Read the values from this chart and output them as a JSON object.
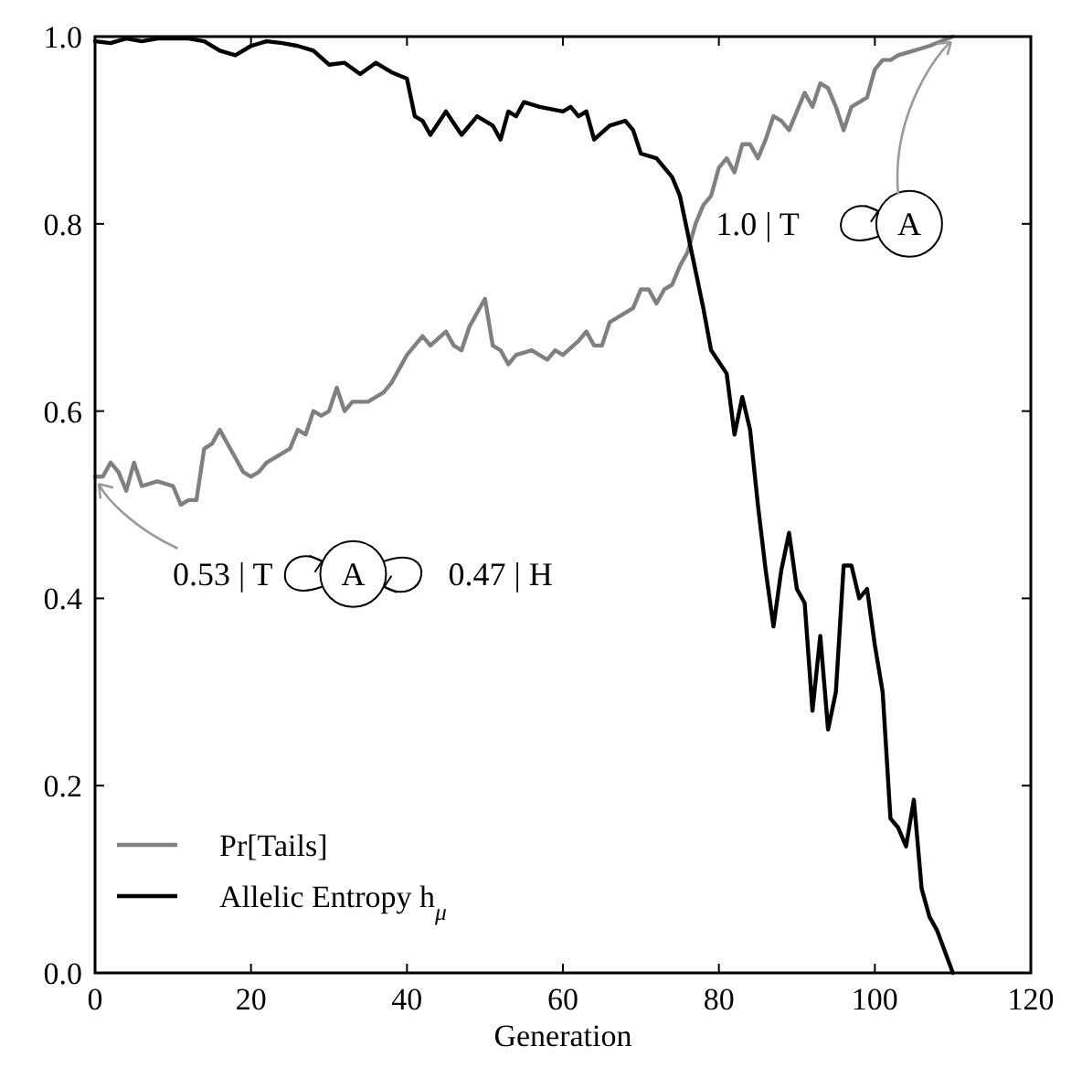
{
  "chart_data": {
    "type": "line",
    "xlabel": "Generation",
    "xlim": [
      0,
      120
    ],
    "ylim": [
      0,
      1.0
    ],
    "xticks": [
      0,
      20,
      40,
      60,
      80,
      100,
      120
    ],
    "yticks": [
      {
        "value": 0,
        "label": "0.0"
      },
      0.2,
      0.4,
      0.6,
      0.8,
      {
        "value": 1,
        "label": "1.0"
      }
    ],
    "grid": false,
    "legend": "bottom left",
    "line_style": "solid",
    "marker": "none",
    "series": [
      {
        "name": "Pr[Tails]",
        "color": "#808080",
        "x": [
          0,
          1,
          2,
          3,
          4,
          5,
          6,
          8,
          10,
          11,
          12,
          13,
          14,
          15,
          16,
          18,
          19,
          20,
          21,
          22,
          23,
          25,
          26,
          27,
          28,
          29,
          30,
          31,
          32,
          33,
          35,
          37,
          38,
          40,
          42,
          43,
          45,
          46,
          47,
          48,
          50,
          51,
          52,
          53,
          54,
          56,
          58,
          59,
          60,
          62,
          63,
          64,
          65,
          66,
          68,
          69,
          70,
          71,
          72,
          73,
          74,
          75,
          76,
          77,
          78,
          79,
          80,
          81,
          82,
          83,
          84,
          85,
          86,
          87,
          88,
          89,
          90,
          91,
          92,
          93,
          94,
          95,
          96,
          97,
          99,
          100,
          101,
          102,
          103,
          105,
          107,
          110
        ],
        "values": [
          0.53,
          0.53,
          0.545,
          0.535,
          0.515,
          0.545,
          0.52,
          0.525,
          0.52,
          0.5,
          0.505,
          0.505,
          0.56,
          0.565,
          0.58,
          0.55,
          0.535,
          0.53,
          0.535,
          0.545,
          0.55,
          0.56,
          0.58,
          0.575,
          0.6,
          0.595,
          0.6,
          0.625,
          0.6,
          0.61,
          0.61,
          0.62,
          0.63,
          0.66,
          0.68,
          0.67,
          0.685,
          0.67,
          0.665,
          0.69,
          0.72,
          0.67,
          0.665,
          0.65,
          0.66,
          0.665,
          0.655,
          0.665,
          0.66,
          0.675,
          0.685,
          0.67,
          0.67,
          0.695,
          0.705,
          0.71,
          0.73,
          0.73,
          0.715,
          0.73,
          0.735,
          0.755,
          0.77,
          0.8,
          0.82,
          0.83,
          0.86,
          0.87,
          0.855,
          0.885,
          0.885,
          0.87,
          0.89,
          0.915,
          0.91,
          0.9,
          0.92,
          0.94,
          0.925,
          0.95,
          0.945,
          0.925,
          0.9,
          0.925,
          0.935,
          0.965,
          0.975,
          0.975,
          0.98,
          0.985,
          0.99,
          1.0
        ]
      },
      {
        "name": "Allelic Entropy h$_{μ}$",
        "color": "#000000",
        "x": [
          0,
          2,
          4,
          6,
          8,
          12,
          14,
          16,
          18,
          20,
          22,
          24,
          26,
          28,
          30,
          32,
          34,
          36,
          38,
          40,
          41,
          42,
          43,
          45,
          47,
          49,
          51,
          52,
          53,
          54,
          55,
          57,
          60,
          61,
          62,
          63,
          64,
          66,
          68,
          69,
          70,
          72,
          74,
          75,
          76,
          77,
          78,
          79,
          81,
          82,
          83,
          84,
          85,
          86,
          87,
          88,
          89,
          90,
          91,
          92,
          93,
          94,
          95,
          96,
          97,
          98,
          99,
          100,
          101,
          102,
          103,
          104,
          105,
          106,
          107,
          108,
          110
        ],
        "values": [
          0.995,
          0.993,
          0.998,
          0.995,
          0.998,
          0.998,
          0.995,
          0.985,
          0.98,
          0.99,
          0.995,
          0.993,
          0.99,
          0.985,
          0.97,
          0.972,
          0.96,
          0.972,
          0.962,
          0.955,
          0.915,
          0.91,
          0.895,
          0.92,
          0.895,
          0.915,
          0.905,
          0.89,
          0.92,
          0.915,
          0.93,
          0.925,
          0.92,
          0.925,
          0.915,
          0.92,
          0.89,
          0.905,
          0.91,
          0.9,
          0.875,
          0.87,
          0.85,
          0.83,
          0.79,
          0.75,
          0.71,
          0.665,
          0.64,
          0.575,
          0.615,
          0.58,
          0.5,
          0.43,
          0.37,
          0.43,
          0.47,
          0.41,
          0.395,
          0.28,
          0.36,
          0.26,
          0.3,
          0.435,
          0.435,
          0.4,
          0.41,
          0.35,
          0.3,
          0.165,
          0.155,
          0.135,
          0.185,
          0.09,
          0.06,
          0.045,
          0.0
        ]
      }
    ],
    "annotations": [
      "1.0 | T",
      {
        "text": "A",
        "x": 110,
        "y": 1.0
      },
      {
        "text": "0.53 | T",
        "x": 0,
        "y": 0.53
      },
      "A",
      "0.47 | H"
    ]
  }
}
